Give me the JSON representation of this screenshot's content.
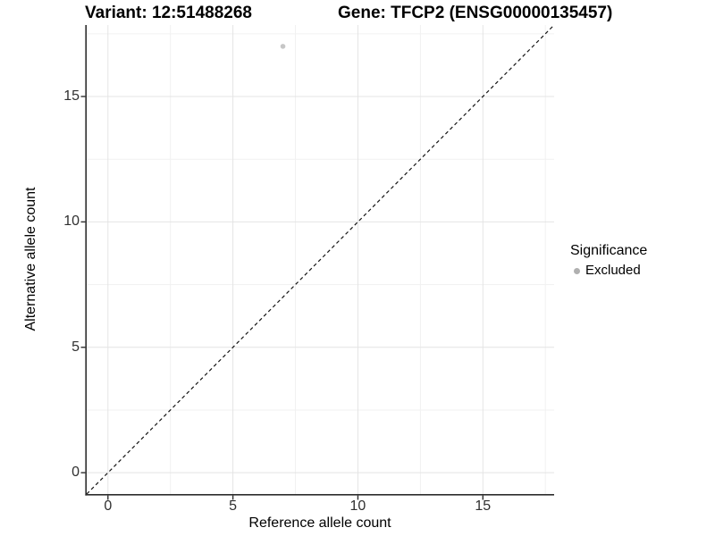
{
  "figure": {
    "title_variant": "Variant: 12:51488268",
    "title_gene": "Gene: TFCP2 (ENSG00000135457)"
  },
  "legend": {
    "title": "Significance",
    "items": [
      {
        "label": "Excluded",
        "color": "#b0b0b0"
      }
    ]
  },
  "chart_data": {
    "type": "scatter",
    "title": "Variant: 12:51488268          Gene: TFCP2 (ENSG00000135457)",
    "xlabel": "Reference allele count",
    "ylabel": "Alternative allele count",
    "xlim": [
      -0.85,
      17.85
    ],
    "ylim": [
      -0.85,
      17.85
    ],
    "x_major_ticks": [
      0,
      5,
      10,
      15
    ],
    "y_major_ticks": [
      0,
      5,
      10,
      15
    ],
    "x_minor_ticks": [
      2.5,
      7.5,
      12.5,
      17.5
    ],
    "y_minor_ticks": [
      2.5,
      7.5,
      12.5,
      17.5
    ],
    "grid": "major+minor",
    "legend_position": "right",
    "series": [
      {
        "name": "Excluded",
        "color": "#c6c6c6",
        "points": [
          {
            "x": 7,
            "y": 17
          }
        ]
      }
    ],
    "reference_line": {
      "type": "identity y=x",
      "style": "dashed",
      "color": "#141414"
    }
  },
  "colors": {
    "background": "#ffffff",
    "grid_major": "#e4e4e4",
    "grid_minor": "#f1f1f1",
    "axis_line": "#2e2e2e",
    "tick_text": "#303030"
  }
}
